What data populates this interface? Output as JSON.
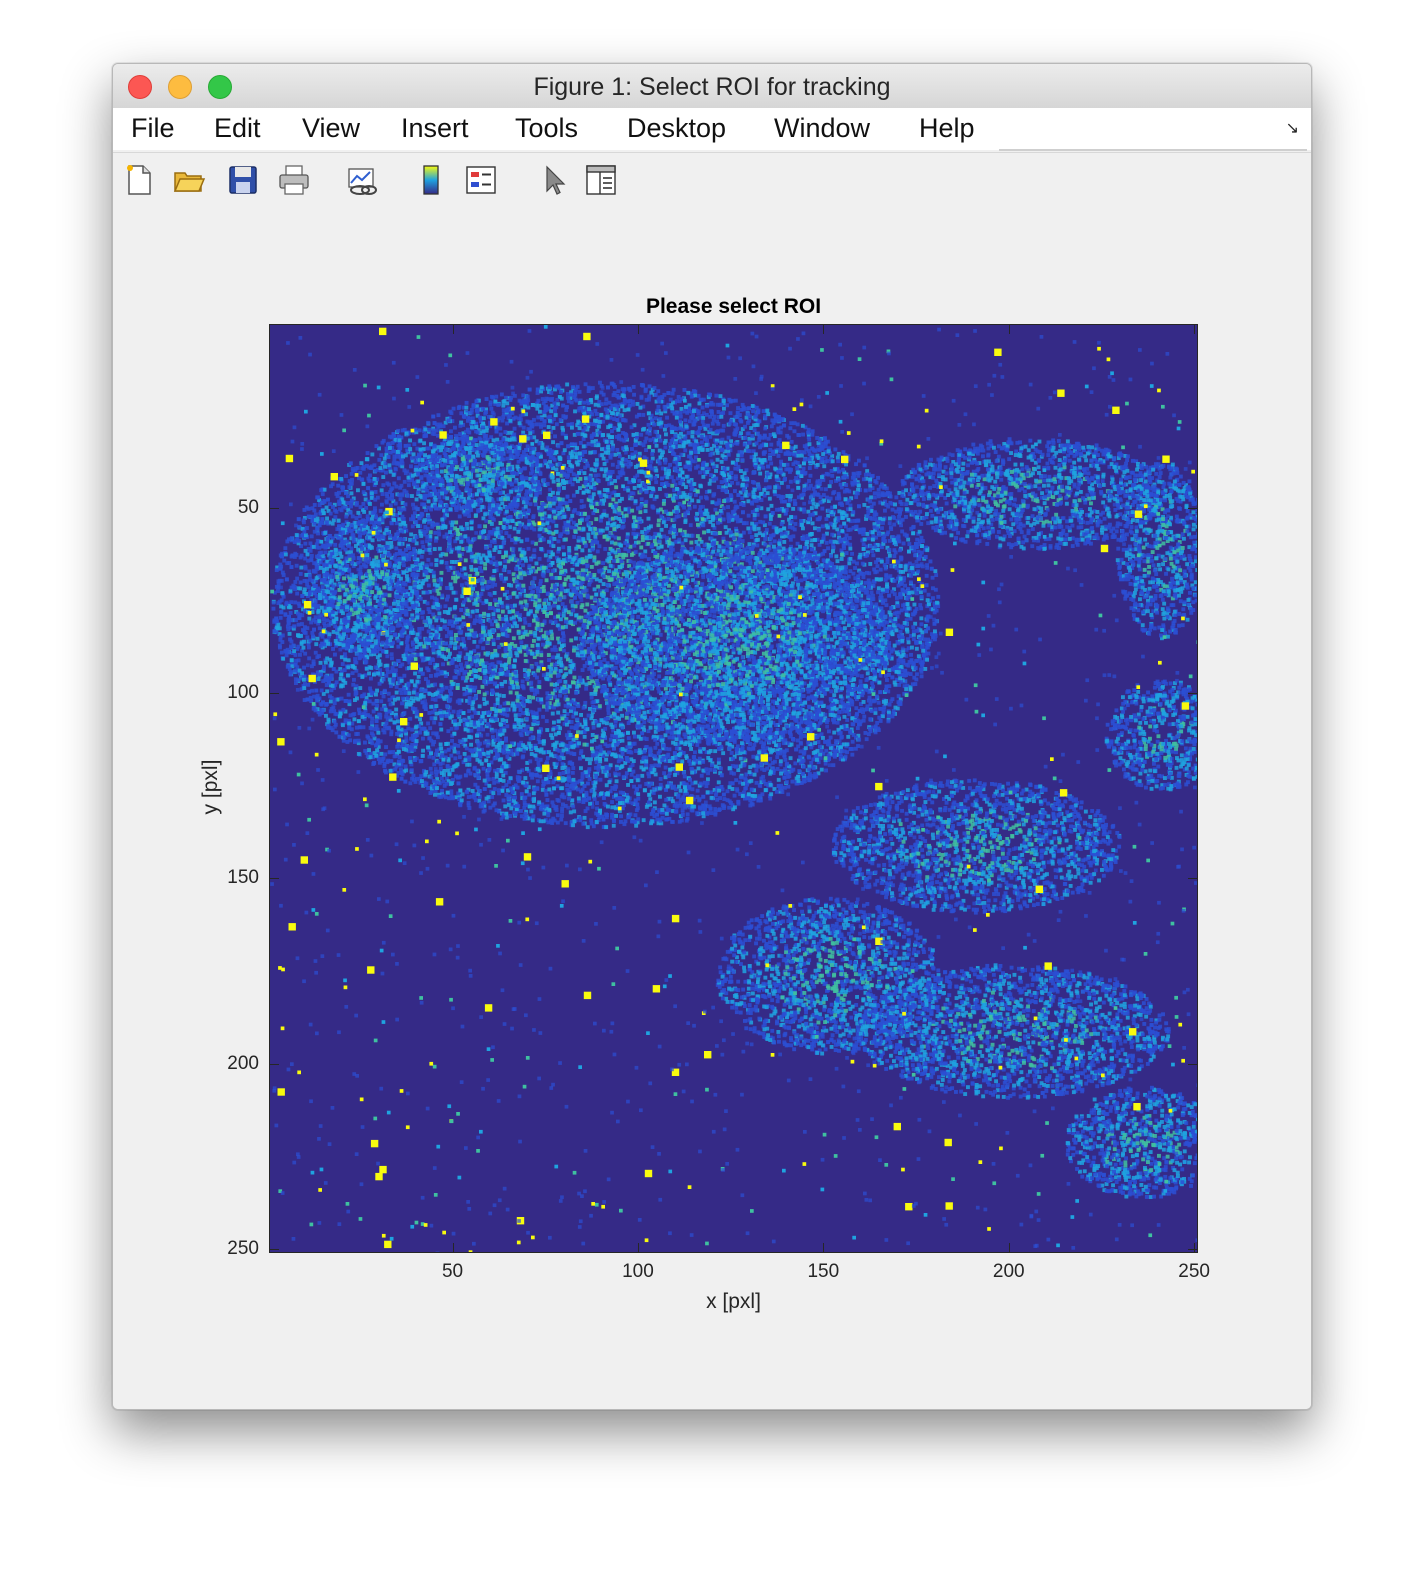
{
  "window": {
    "title": "Figure 1: Select ROI for tracking"
  },
  "menu": {
    "items": [
      "File",
      "Edit",
      "View",
      "Insert",
      "Tools",
      "Desktop",
      "Window",
      "Help"
    ]
  },
  "toolbar": {
    "icons": [
      "new-figure-icon",
      "open-file-icon",
      "save-icon",
      "print-icon",
      "link-plot-icon",
      "insert-colorbar-icon",
      "insert-legend-icon",
      "edit-plot-arrow-icon",
      "property-inspector-icon"
    ]
  },
  "chart_data": {
    "type": "heatmap",
    "title": "Please select ROI",
    "xlabel": "x [pxl]",
    "ylabel": "y [pxl]",
    "xlim": [
      0.5,
      250.5
    ],
    "ylim": [
      0.5,
      250.5
    ],
    "y_reversed": true,
    "xticks": [
      50,
      100,
      150,
      200,
      250
    ],
    "yticks": [
      50,
      100,
      150,
      200,
      250
    ],
    "colormap": "parula",
    "colors": {
      "background": "#352a87",
      "low": "#2c4fd4",
      "mid": "#1fa3e0",
      "high": "#3fc1a0",
      "peak": "#f9fb0e"
    }
  }
}
